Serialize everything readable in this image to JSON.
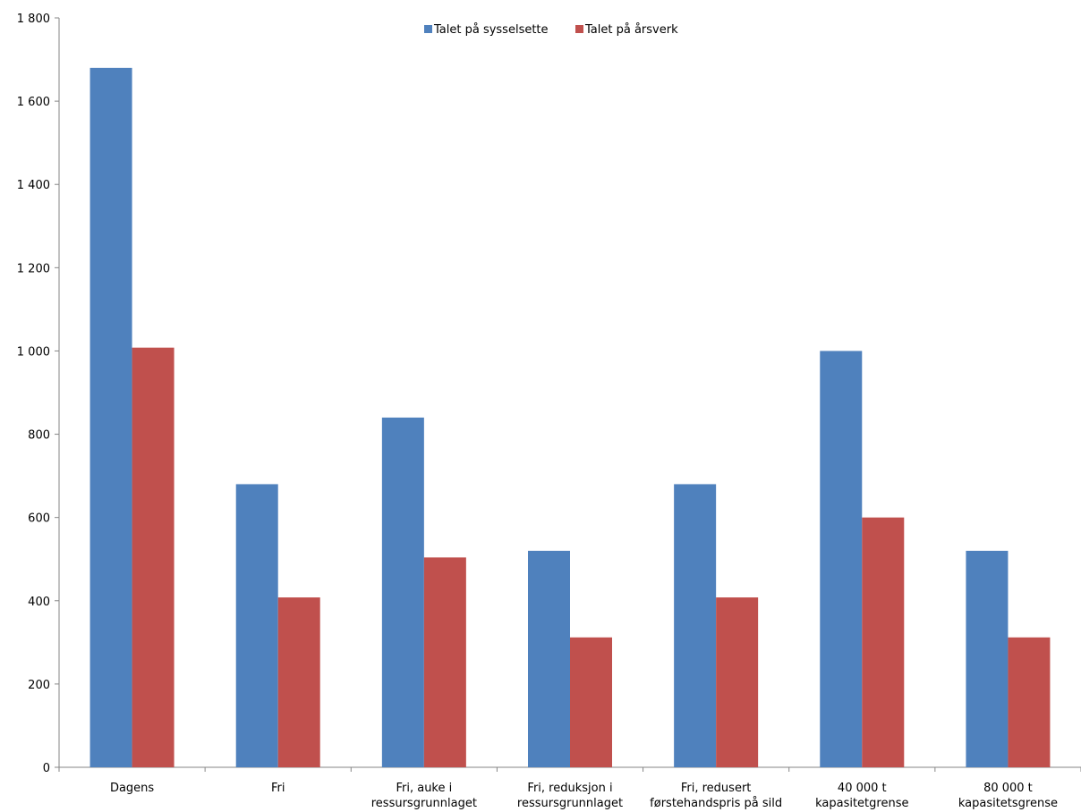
{
  "chart_data": {
    "type": "bar",
    "categories": [
      [
        "Dagens"
      ],
      [
        "Fri"
      ],
      [
        "Fri, auke i",
        "ressursgrunnlaget"
      ],
      [
        "Fri, reduksjon i",
        "ressursgrunnlaget"
      ],
      [
        "Fri, redusert",
        "førstehandspris på sild"
      ],
      [
        "40 000 t",
        "kapasitetgrense"
      ],
      [
        "80 000 t",
        "kapasitetsgrense"
      ]
    ],
    "series": [
      {
        "name": "Talet på sysselsette",
        "color": "#4f81bd",
        "values": [
          1680,
          680,
          840,
          520,
          680,
          1000,
          520
        ]
      },
      {
        "name": "Talet på årsverk",
        "color": "#c0504d",
        "values": [
          1008,
          408,
          504,
          312,
          408,
          600,
          312
        ]
      }
    ],
    "ylim": [
      0,
      1800
    ],
    "yticks": [
      0,
      200,
      400,
      600,
      800,
      1000,
      1200,
      1400,
      1600,
      1800
    ],
    "ytick_labels": [
      "0",
      "200",
      "400",
      "600",
      "800",
      "1 000",
      "1 200",
      "1 400",
      "1 600",
      "1 800"
    ],
    "grid": false,
    "legend_position": "top-center"
  }
}
